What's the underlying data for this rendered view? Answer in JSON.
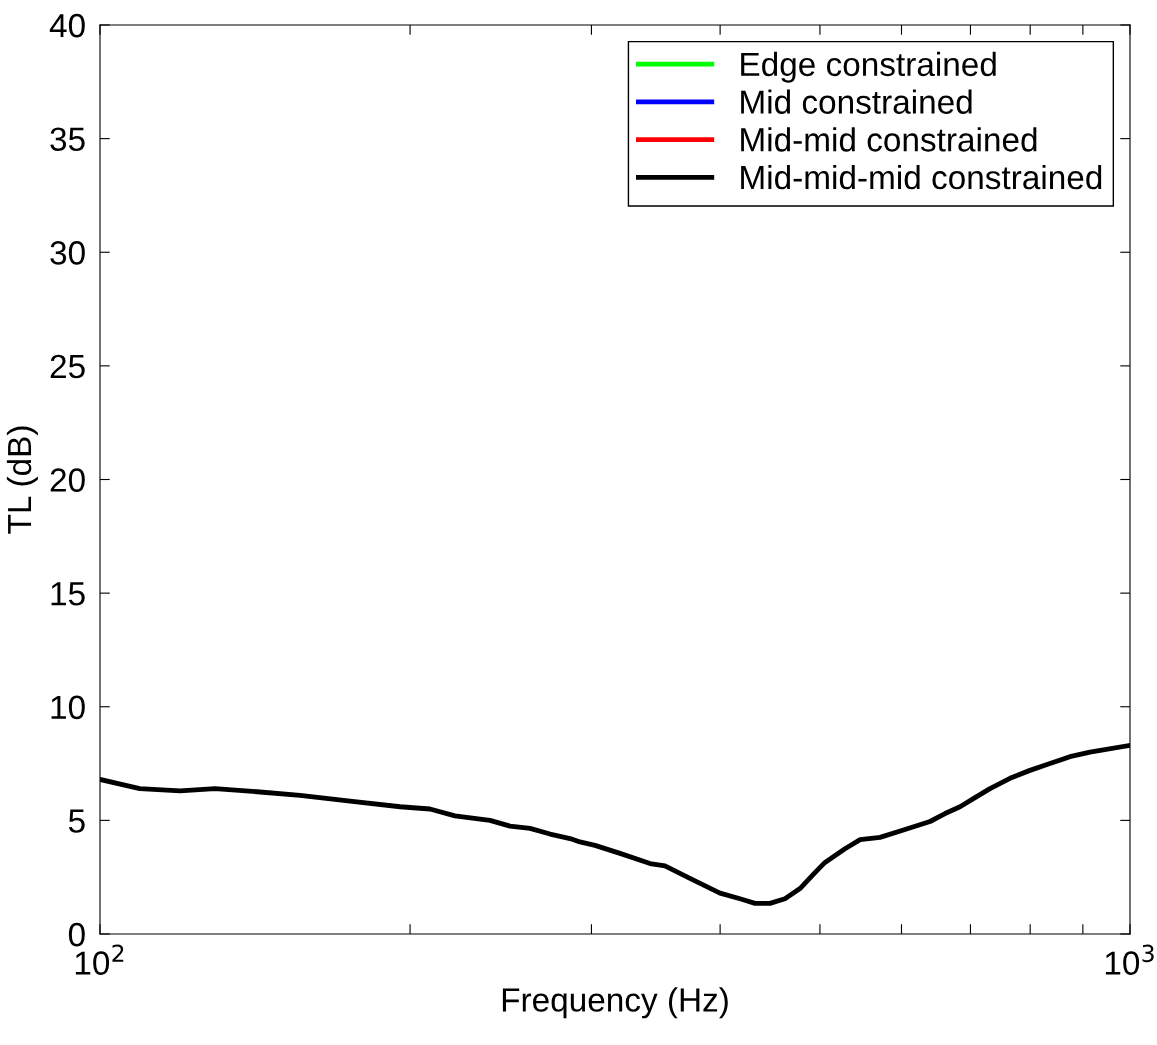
{
  "chart_data": {
    "type": "line",
    "xlabel": "Frequency (Hz)",
    "ylabel": "TL (dB)",
    "log": "x",
    "xlim": [
      100,
      1000
    ],
    "ylim": [
      0,
      40
    ],
    "xticks": [
      {
        "value": 100,
        "label": "10$^{2}$"
      },
      {
        "value": 200,
        "label": null
      },
      {
        "value": 300,
        "label": null
      },
      {
        "value": 400,
        "label": null
      },
      {
        "value": 500,
        "label": null
      },
      {
        "value": 600,
        "label": null
      },
      {
        "value": 700,
        "label": null
      },
      {
        "value": 800,
        "label": null
      },
      {
        "value": 900,
        "label": null
      },
      {
        "value": 1000,
        "label": "10$^{3}$"
      }
    ],
    "yticks": [
      0,
      5,
      10,
      15,
      20,
      25,
      30,
      35,
      40
    ],
    "x": [
      100,
      109.3,
      119.6,
      129.3,
      143.0,
      156.4,
      174.9,
      195.6,
      209.1,
      221.1,
      239.1,
      250.1,
      261.5,
      273.5,
      286.0,
      292.4,
      302.4,
      319.8,
      342.0,
      353.6,
      373.9,
      399.9,
      418.2,
      432.5,
      447.2,
      462.4,
      478.2,
      494.5,
      505.7,
      528.8,
      547.0,
      571.9,
      604.8,
      639.5,
      661.4,
      683.9,
      707.2,
      731.3,
      764.7,
      799.6,
      836.1,
      874.3,
      914.5,
      1000
    ],
    "series": [
      {
        "name": "Edge constrained",
        "color": "#00ff00",
        "values": [
          null,
          null,
          null,
          null,
          null,
          null,
          null,
          null,
          null,
          null,
          null,
          null,
          null,
          null,
          null,
          null,
          null,
          null,
          null,
          null,
          null,
          null,
          null,
          null,
          null,
          null,
          null,
          null,
          null,
          null,
          null,
          null,
          null,
          null,
          null,
          null,
          null,
          null,
          null,
          null,
          null,
          null,
          null,
          null
        ]
      },
      {
        "name": "Mid constrained",
        "color": "#0000ff",
        "values": [
          null,
          null,
          null,
          null,
          null,
          null,
          null,
          null,
          null,
          null,
          null,
          null,
          null,
          null,
          null,
          null,
          null,
          null,
          null,
          null,
          null,
          null,
          null,
          null,
          null,
          null,
          null,
          null,
          null,
          null,
          null,
          null,
          null,
          null,
          null,
          null,
          null,
          null,
          null,
          null,
          null,
          null,
          null,
          null
        ]
      },
      {
        "name": "Mid-mid constrained",
        "color": "#ff0000",
        "values": [
          null,
          null,
          null,
          null,
          null,
          null,
          null,
          null,
          null,
          null,
          null,
          null,
          null,
          null,
          null,
          null,
          null,
          null,
          null,
          null,
          null,
          null,
          null,
          null,
          null,
          null,
          null,
          null,
          null,
          null,
          null,
          null,
          null,
          null,
          null,
          null,
          null,
          null,
          null,
          null,
          null,
          null,
          null,
          null
        ]
      },
      {
        "name": "Mid-mid-mid constrained",
        "color": "#000000",
        "values": [
          6.8,
          6.4,
          6.3,
          6.4,
          6.25,
          6.1,
          5.85,
          5.6,
          5.5,
          5.2,
          5.0,
          4.75,
          4.65,
          4.4,
          4.2,
          4.05,
          3.9,
          3.55,
          3.1,
          3.0,
          2.45,
          1.8,
          1.55,
          1.35,
          1.35,
          1.55,
          2.0,
          2.7,
          3.15,
          3.75,
          4.15,
          4.25,
          4.6,
          4.95,
          5.3,
          5.6,
          6.0,
          6.4,
          6.85,
          7.2,
          7.5,
          7.8,
          8.0,
          8.3
        ]
      }
    ],
    "legend": "top right",
    "grid": false,
    "marker": "none",
    "line_style": "solid"
  }
}
